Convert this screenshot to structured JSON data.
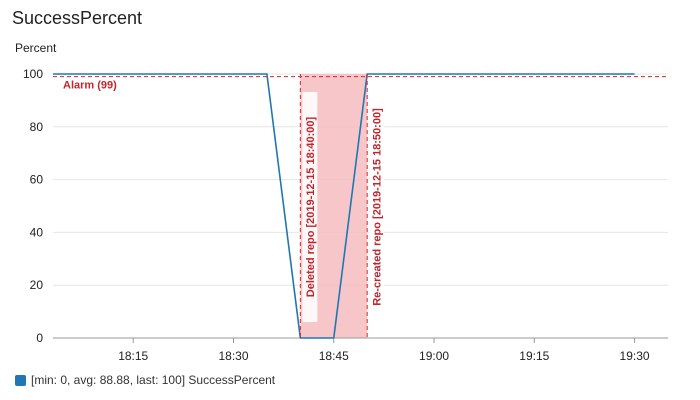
{
  "chart_data": {
    "type": "line",
    "title": "SuccessPercent",
    "ylabel": "Percent",
    "ylim": [
      0,
      100
    ],
    "yticks": [
      0,
      20,
      40,
      60,
      80,
      100
    ],
    "xlim": [
      "18:03",
      "19:35"
    ],
    "xticks": [
      "18:15",
      "18:30",
      "18:45",
      "19:00",
      "19:15",
      "19:30"
    ],
    "grid": true,
    "series": [
      {
        "name": "SuccessPercent",
        "color": "#1f77b4",
        "x": [
          "18:03",
          "18:35",
          "18:40",
          "18:45",
          "18:50",
          "19:30"
        ],
        "y": [
          100,
          100,
          0,
          0,
          100,
          100
        ]
      }
    ],
    "threshold": {
      "label": "Alarm (99)",
      "value": 99,
      "color": "#d62728"
    },
    "alarm_band": {
      "x_start": "18:40",
      "x_end": "18:50",
      "color": "#f4bcbf"
    },
    "annotations": [
      {
        "x": "18:40",
        "label": "Deleted repo [2019-12-15 18:40:00]"
      },
      {
        "x": "18:50",
        "label": "Re-created repo [2019-12-15 18:50:00]"
      }
    ],
    "legend": {
      "placement": "bottom-left",
      "text": "[min: 0, avg: 88.88, last: 100] SuccessPercent"
    }
  }
}
